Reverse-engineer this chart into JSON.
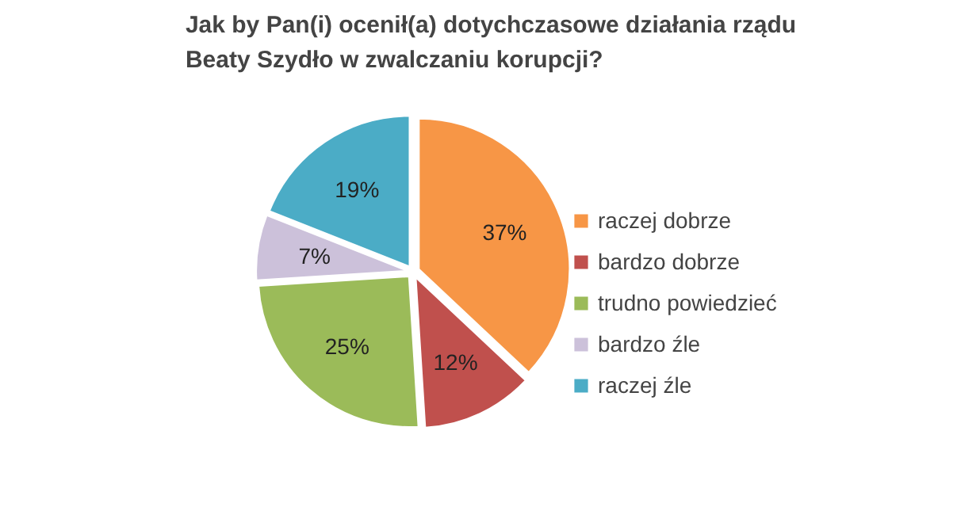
{
  "chart_data": {
    "type": "pie",
    "title": "Jak by Pan(i) ocenił(a) dotychczasowe działania rządu Beaty Szydło w zwalczaniu korupcji?",
    "categories": [
      "raczej dobrze",
      "bardzo dobrze",
      "trudno powiedzieć",
      "bardzo źle",
      "raczej źle"
    ],
    "values": [
      37,
      12,
      25,
      7,
      19
    ],
    "value_labels": [
      "37%",
      "12%",
      "25%",
      "7%",
      "19%"
    ],
    "colors": [
      "#f79646",
      "#c0504d",
      "#9bbb59",
      "#ccc1da",
      "#4bacc6"
    ],
    "legend": "right"
  }
}
